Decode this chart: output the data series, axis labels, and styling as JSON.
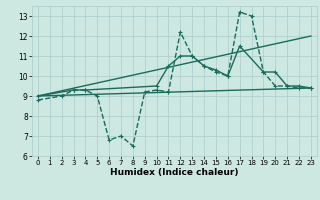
{
  "title": "",
  "xlabel": "Humidex (Indice chaleur)",
  "bg_color": "#cce8e0",
  "grid_color": "#aacccc",
  "line_color": "#1a6b5a",
  "xlim": [
    -0.5,
    23.5
  ],
  "ylim": [
    6,
    13.5
  ],
  "yticks": [
    6,
    7,
    8,
    9,
    10,
    11,
    12,
    13
  ],
  "xticks": [
    0,
    1,
    2,
    3,
    4,
    5,
    6,
    7,
    8,
    9,
    10,
    11,
    12,
    13,
    14,
    15,
    16,
    17,
    18,
    19,
    20,
    21,
    22,
    23
  ],
  "series": [
    {
      "x": [
        0,
        2,
        3,
        4,
        5,
        6,
        7,
        8,
        9,
        10,
        11,
        12,
        13,
        14,
        15,
        16,
        17,
        18,
        19,
        20,
        21,
        22,
        23
      ],
      "y": [
        8.8,
        9.0,
        9.3,
        9.3,
        9.0,
        6.8,
        7.0,
        6.5,
        9.2,
        9.3,
        9.2,
        12.2,
        11.0,
        10.5,
        10.2,
        10.0,
        13.2,
        13.0,
        10.2,
        9.5,
        9.5,
        9.4,
        9.4
      ],
      "style": "--",
      "marker": "+"
    },
    {
      "x": [
        0,
        3,
        4,
        10,
        11,
        12,
        13,
        14,
        15,
        16,
        17,
        19,
        20,
        21,
        22,
        23
      ],
      "y": [
        9.0,
        9.3,
        9.3,
        9.5,
        10.5,
        11.0,
        11.0,
        10.5,
        10.3,
        10.0,
        11.5,
        10.2,
        10.2,
        9.5,
        9.5,
        9.4
      ],
      "style": "-",
      "marker": "+"
    },
    {
      "x": [
        0,
        23
      ],
      "y": [
        9.0,
        12.0
      ],
      "style": "-",
      "marker": ""
    },
    {
      "x": [
        0,
        23
      ],
      "y": [
        9.0,
        9.4
      ],
      "style": "-",
      "marker": ""
    }
  ]
}
